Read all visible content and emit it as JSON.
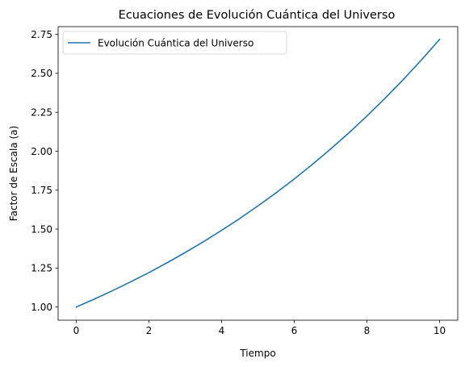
{
  "chart_data": {
    "type": "line",
    "title": "Ecuaciones de Evolución Cuántica del Universo",
    "xlabel": "Tiempo",
    "ylabel": "Factor de Escala (a)",
    "xlim": [
      -0.5,
      10.5
    ],
    "ylim": [
      0.915,
      2.8
    ],
    "xticks": [
      0,
      2,
      4,
      6,
      8,
      10
    ],
    "xtick_labels": [
      "0",
      "2",
      "4",
      "6",
      "8",
      "10"
    ],
    "yticks": [
      1.0,
      1.25,
      1.5,
      1.75,
      2.0,
      2.25,
      2.5,
      2.75
    ],
    "ytick_labels": [
      "1.00",
      "1.25",
      "1.50",
      "1.75",
      "2.00",
      "2.25",
      "2.50",
      "2.75"
    ],
    "grid": false,
    "legend_position": "top-left",
    "series": [
      {
        "name": "Evolución Cuántica del Universo",
        "color": "#1f77b4",
        "x": [
          0,
          0.5,
          1,
          1.5,
          2,
          2.5,
          3,
          3.5,
          4,
          4.5,
          5,
          5.5,
          6,
          6.5,
          7,
          7.5,
          8,
          8.5,
          9,
          9.5,
          10
        ],
        "y": [
          1.0,
          1.051,
          1.105,
          1.162,
          1.221,
          1.284,
          1.35,
          1.419,
          1.492,
          1.568,
          1.649,
          1.733,
          1.822,
          1.916,
          2.014,
          2.117,
          2.226,
          2.34,
          2.46,
          2.586,
          2.718
        ]
      }
    ]
  }
}
